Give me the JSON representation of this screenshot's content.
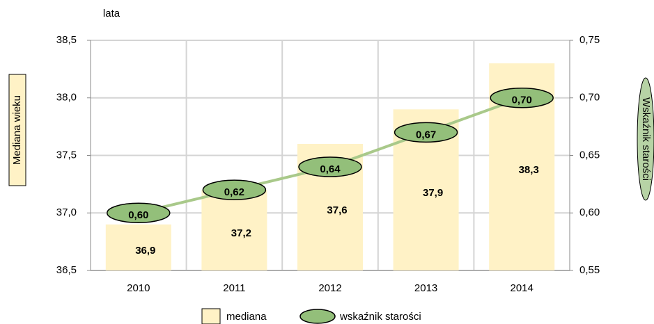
{
  "chart_data": {
    "type": "bar_line",
    "y_unit": "lata",
    "y_label": "Mediana wieku",
    "y2_label": "Wskaźnik starości",
    "categories": [
      "2010",
      "2011",
      "2012",
      "2013",
      "2014"
    ],
    "series": [
      {
        "name": "mediana",
        "type": "bar",
        "color": "#fff2c6",
        "values": [
          36.9,
          37.2,
          37.6,
          37.9,
          38.3
        ],
        "value_labels": [
          "36,9",
          "37,2",
          "37,6",
          "37,9",
          "38,3"
        ]
      },
      {
        "name": "wskaźnik starości",
        "type": "line",
        "axis": "y2",
        "color": "#a9c98a",
        "marker_color": "#93bf7a",
        "values": [
          0.6,
          0.62,
          0.64,
          0.67,
          0.7
        ],
        "value_labels": [
          "0,60",
          "0,62",
          "0,64",
          "0,67",
          "0,70"
        ]
      }
    ],
    "ylim": [
      36.5,
      38.5
    ],
    "yticks": [
      {
        "value": 36.5,
        "label": "36,5"
      },
      {
        "value": 37.0,
        "label": "37,0"
      },
      {
        "value": 37.5,
        "label": "37,5"
      },
      {
        "value": 38.0,
        "label": "38,0"
      },
      {
        "value": 38.5,
        "label": "38,5"
      }
    ],
    "y2lim": [
      0.55,
      0.75
    ],
    "y2ticks": [
      {
        "value": 0.55,
        "label": "0,55"
      },
      {
        "value": 0.6,
        "label": "0,60"
      },
      {
        "value": 0.65,
        "label": "0,65"
      },
      {
        "value": 0.7,
        "label": "0,70"
      },
      {
        "value": 0.75,
        "label": "0,75"
      }
    ],
    "grid": true
  }
}
